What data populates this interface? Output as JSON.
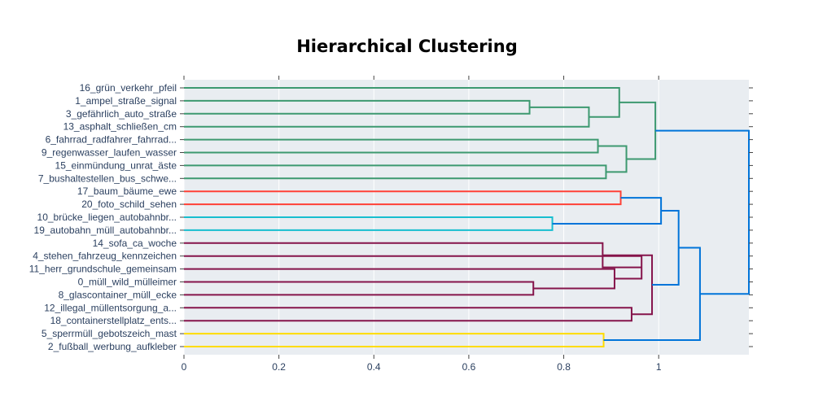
{
  "chart_data": {
    "type": "dendrogram",
    "title": "Hierarchical Clustering",
    "xlim": [
      0,
      1.19
    ],
    "x_ticks": [
      0,
      0.2,
      0.4,
      0.6,
      0.8,
      1
    ],
    "x_tick_labels": [
      "0",
      "0.2",
      "0.4",
      "0.6",
      "0.8",
      "1"
    ],
    "grid": true,
    "leaves": [
      "16_grün_verkehr_pfeil",
      "1_ampel_straße_signal",
      "3_gefährlich_auto_straße",
      "13_asphalt_schließen_cm",
      "6_fahrrad_radfahrer_fahrrad...",
      "9_regenwasser_laufen_wasser",
      "15_einmündung_unrat_äste",
      "7_bushaltestellen_bus_schwe...",
      "17_baum_bäume_ewe",
      "20_foto_schild_sehen",
      "10_brücke_liegen_autobahnbr...",
      "19_autobahn_müll_autobahnbr...",
      "14_sofa_ca_woche",
      "4_stehen_fahrzeug_kennzeichen",
      "11_herr_grundschule_gemeinsam",
      "0_müll_wild_mülleimer",
      "8_glascontainer_müll_ecke",
      "12_illegal_müllentsorgung_a...",
      "18_containerstellplatz_ents...",
      "5_sperrmüll_gebotszeich_mast",
      "2_fußball_werbung_aufkleber"
    ],
    "merges": [
      {
        "id": "A",
        "children": [
          1,
          2
        ],
        "distance": 0.728,
        "color": "#3d9970"
      },
      {
        "id": "B",
        "children": [
          "A",
          3
        ],
        "distance": 0.853,
        "color": "#3d9970"
      },
      {
        "id": "C",
        "children": [
          0,
          "B"
        ],
        "distance": 0.917,
        "color": "#3d9970"
      },
      {
        "id": "D",
        "children": [
          4,
          5
        ],
        "distance": 0.872,
        "color": "#3d9970"
      },
      {
        "id": "E",
        "children": [
          6,
          7
        ],
        "distance": 0.889,
        "color": "#3d9970"
      },
      {
        "id": "F",
        "children": [
          "D",
          "E"
        ],
        "distance": 0.932,
        "color": "#3d9970"
      },
      {
        "id": "G",
        "children": [
          "C",
          "F"
        ],
        "distance": 0.993,
        "color": "#3d9970"
      },
      {
        "id": "H",
        "children": [
          8,
          9
        ],
        "distance": 0.92,
        "color": "#ff4136"
      },
      {
        "id": "I",
        "children": [
          10,
          11
        ],
        "distance": 0.776,
        "color": "#17becf"
      },
      {
        "id": "J",
        "children": [
          "H",
          "I"
        ],
        "distance": 1.005,
        "color": "#0074d9"
      },
      {
        "id": "K",
        "children": [
          15,
          16
        ],
        "distance": 0.736,
        "color": "#85144b"
      },
      {
        "id": "L",
        "children": [
          14,
          "K"
        ],
        "distance": 0.907,
        "color": "#85144b"
      },
      {
        "id": "M",
        "children": [
          13,
          "L"
        ],
        "distance": 0.964,
        "color": "#85144b"
      },
      {
        "id": "N",
        "children": [
          12,
          "M"
        ],
        "distance": 0.882,
        "color": "#85144b"
      },
      {
        "id": "O",
        "children": [
          17,
          18
        ],
        "distance": 0.943,
        "color": "#85144b"
      },
      {
        "id": "P",
        "children": [
          "N",
          "O"
        ],
        "distance": 0.986,
        "color": "#85144b"
      },
      {
        "id": "Q",
        "children": [
          "J",
          "P"
        ],
        "distance": 1.042,
        "color": "#0074d9"
      },
      {
        "id": "R",
        "children": [
          19,
          20
        ],
        "distance": 0.884,
        "color": "#ffdc00"
      },
      {
        "id": "S",
        "children": [
          "Q",
          "R"
        ],
        "distance": 1.087,
        "color": "#0074d9"
      },
      {
        "id": "T",
        "children": [
          "G",
          "S"
        ],
        "distance": 1.19,
        "color": "#0074d9"
      }
    ],
    "colors": {
      "plot_bg": "#e9edf1",
      "paper_bg": "#ffffff",
      "tick_text": "#2a3f5f"
    }
  }
}
